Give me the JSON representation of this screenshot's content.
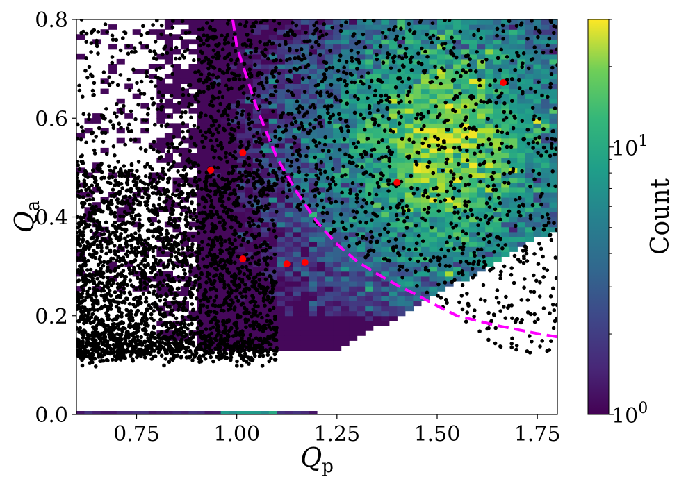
{
  "chart_data": {
    "type": "scatter",
    "title": "",
    "xlabel": {
      "main": "Q",
      "sub": "p"
    },
    "ylabel": {
      "main": "Q",
      "sub": "a"
    },
    "xlim": [
      0.6,
      1.8
    ],
    "ylim": [
      0.0,
      0.8
    ],
    "x_ticks": [
      0.75,
      1.0,
      1.25,
      1.5,
      1.75
    ],
    "x_tick_labels": [
      "0.75",
      "1.00",
      "1.25",
      "1.50",
      "1.75"
    ],
    "y_ticks": [
      0.0,
      0.2,
      0.4,
      0.6,
      0.8
    ],
    "y_tick_labels": [
      "0.0",
      "0.2",
      "0.4",
      "0.6",
      "0.8"
    ],
    "grid": false,
    "colorbar": {
      "label": "Count",
      "scale": "log",
      "range": [
        1,
        30
      ],
      "colormap": "viridis",
      "ticks": [
        {
          "value": 1,
          "base": "10",
          "exp": "0"
        },
        {
          "value": 10,
          "base": "10",
          "exp": "1"
        }
      ]
    },
    "curve": {
      "style": "dashed",
      "color": "#ff00ff",
      "x": [
        0.99,
        1.0,
        1.05,
        1.1,
        1.15,
        1.2,
        1.25,
        1.3,
        1.35,
        1.4,
        1.45,
        1.5,
        1.55,
        1.6,
        1.65,
        1.7,
        1.75,
        1.8
      ],
      "y": [
        0.8,
        0.745,
        0.62,
        0.52,
        0.45,
        0.39,
        0.345,
        0.31,
        0.285,
        0.262,
        0.242,
        0.22,
        0.2,
        0.19,
        0.18,
        0.172,
        0.164,
        0.157
      ]
    },
    "highlight_points": {
      "color": "#ff0000",
      "x": [
        0.935,
        1.015,
        1.015,
        1.125,
        1.17,
        1.4,
        1.665
      ],
      "y": [
        0.495,
        0.53,
        0.315,
        0.305,
        0.308,
        0.47,
        0.672
      ]
    },
    "scatter_color": "#000000"
  }
}
